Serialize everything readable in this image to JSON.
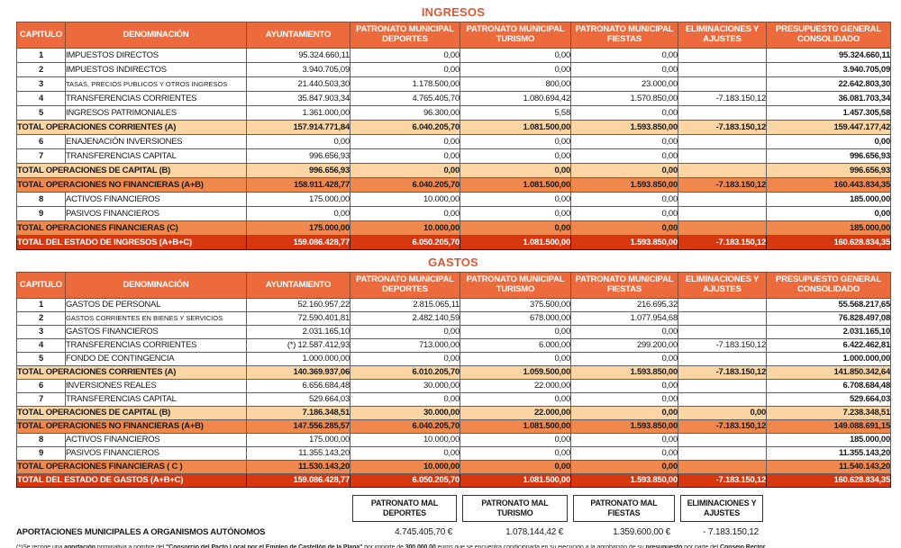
{
  "colors": {
    "header_bg": "#ED6A3C",
    "title_color": "#DE5730",
    "sub_bg": "#FBD5A4",
    "mid_bg": "#F0884E",
    "grand_bg": "#D8380F"
  },
  "columns": [
    "CAPITULO",
    "DENOMINACIÓN",
    "AYUNTAMIENTO",
    "PATRONATO MUNICIPAL\nDEPORTES",
    "PATRONATO MUNICIPAL\nTURISMO",
    "PATRONATO MUNICIPAL\nFIESTAS",
    "ELIMINACIONES Y\nAJUSTES",
    "PRESUPUESTO GENERAL\nCONSOLIDADO"
  ],
  "ingresos": {
    "title": "INGRESOS",
    "rows": [
      {
        "type": "data",
        "cap": "1",
        "den": "IMPUESTOS DIRECTOS",
        "vals": [
          "95.324.660,11",
          "0,00",
          "0,00",
          "0,00",
          "",
          "95.324.660,11"
        ]
      },
      {
        "type": "data",
        "cap": "2",
        "den": "IMPUESTOS INDIRECTOS",
        "vals": [
          "3.940.705,09",
          "0,00",
          "0,00",
          "0,00",
          "",
          "3.940.705,09"
        ]
      },
      {
        "type": "data",
        "cap": "3",
        "den": "TASAS, PRECIOS PUBLICOS Y OTROS INGRESOS",
        "small": true,
        "vals": [
          "21.440.503,30",
          "1.178.500,00",
          "800,00",
          "23.000,00",
          "",
          "22.642.803,30"
        ]
      },
      {
        "type": "data",
        "cap": "4",
        "den": "TRANSFERENCIAS CORRIENTES",
        "vals": [
          "35.847.903,34",
          "4.765.405,70",
          "1.080.694,42",
          "1.570.850,00",
          "-7.183.150,12",
          "36.081.703,34"
        ]
      },
      {
        "type": "data",
        "cap": "5",
        "den": "INGRESOS PATRIMONIALES",
        "vals": [
          "1.361.000,00",
          "96.300,00",
          "5,58",
          "0,00",
          "",
          "1.457.305,58"
        ]
      },
      {
        "type": "sub",
        "label": "TOTAL OPERACIONES CORRIENTES (A)",
        "vals": [
          "157.914.771,84",
          "6.040.205,70",
          "1.081.500,00",
          "1.593.850,00",
          "-7.183.150,12",
          "159.447.177,42"
        ]
      },
      {
        "type": "data",
        "cap": "6",
        "den": "ENAJENACIÓN INVERSIONES",
        "vals": [
          "0,00",
          "0,00",
          "0,00",
          "0,00",
          "",
          "0,00"
        ]
      },
      {
        "type": "data",
        "cap": "7",
        "den": "TRANSFERENCIAS CAPITAL",
        "vals": [
          "996.656,93",
          "0,00",
          "0,00",
          "0,00",
          "",
          "996.656,93"
        ]
      },
      {
        "type": "sub",
        "label": "TOTAL OPERACIONES DE CAPITAL (B)",
        "vals": [
          "996.656,93",
          "0,00",
          "0,00",
          "0,00",
          "",
          "996.656,93"
        ]
      },
      {
        "type": "mid",
        "label": "TOTAL OPERACIONES NO FINANCIERAS (A+B)",
        "vals": [
          "158.911.428,77",
          "6.040.205,70",
          "1.081.500,00",
          "1.593.850,00",
          "-7.183.150,12",
          "160.443.834,35"
        ]
      },
      {
        "type": "data",
        "cap": "8",
        "den": "ACTIVOS FINANCIEROS",
        "vals": [
          "175.000,00",
          "10.000,00",
          "0,00",
          "0,00",
          "",
          "185.000,00"
        ]
      },
      {
        "type": "data",
        "cap": "9",
        "den": "PASIVOS FINANCIEROS",
        "vals": [
          "0,00",
          "0,00",
          "0,00",
          "0,00",
          "",
          "0,00"
        ]
      },
      {
        "type": "mid",
        "label": "TOTAL OPERACIONES FINANCIERAS (C)",
        "vals": [
          "175.000,00",
          "10.000,00",
          "0,00",
          "0,00",
          "",
          "185.000,00"
        ]
      },
      {
        "type": "grand",
        "label": "TOTAL DEL ESTADO DE INGRESOS (A+B+C)",
        "vals": [
          "159.086.428,77",
          "6.050.205,70",
          "1.081.500,00",
          "1.593.850,00",
          "-7.183.150,12",
          "160.628.834,35"
        ]
      }
    ]
  },
  "gastos": {
    "title": "GASTOS",
    "rows": [
      {
        "type": "data",
        "cap": "1",
        "den": "GASTOS DE PERSONAL",
        "vals": [
          "52.160.957,22",
          "2.815.065,11",
          "375.500,00",
          "216.695,32",
          "",
          "55.568.217,65"
        ]
      },
      {
        "type": "data",
        "cap": "2",
        "den": "GASTOS CORRIENTES EN BIENES Y SERVICIOS",
        "small": true,
        "vals": [
          "72.590.401,81",
          "2.482.140,59",
          "678.000,00",
          "1.077.954,68",
          "",
          "76.828.497,08"
        ]
      },
      {
        "type": "data",
        "cap": "3",
        "den": "GASTOS FINANCIEROS",
        "vals": [
          "2.031.165,10",
          "0,00",
          "0,00",
          "0,00",
          "",
          "2.031.165,10"
        ]
      },
      {
        "type": "data",
        "cap": "4",
        "den": "TRANSFERENCIAS CORRIENTES",
        "boxed_elim": true,
        "vals": [
          "(*) 12.587.412,93",
          "713.000,00",
          "6.000,00",
          "299.200,00",
          "-7.183.150,12",
          "6.422.462,81"
        ]
      },
      {
        "type": "data",
        "cap": "5",
        "den": "FONDO DE CONTINGENCIA",
        "vals": [
          "1.000.000,00",
          "0,00",
          "0,00",
          "0,00",
          "",
          "1.000.000,00"
        ]
      },
      {
        "type": "sub",
        "label": "TOTAL OPERACIONES CORRIENTES (A)",
        "vals": [
          "140.369.937,06",
          "6.010.205,70",
          "1.059.500,00",
          "1.593.850,00",
          "-7.183.150,12",
          "141.850.342,64"
        ]
      },
      {
        "type": "data",
        "cap": "6",
        "den": "INVERSIONES REALES",
        "vals": [
          "6.656.684,48",
          "30.000,00",
          "22.000,00",
          "0,00",
          "",
          "6.708.684,48"
        ]
      },
      {
        "type": "data",
        "cap": "7",
        "den": "TRANSFERENCIAS CAPITAL",
        "vals": [
          "529.664,03",
          "0,00",
          "0,00",
          "0,00",
          "",
          "529.664,03"
        ]
      },
      {
        "type": "sub",
        "label": "TOTAL OPERACIONES DE CAPITAL (B)",
        "vals": [
          "7.186.348,51",
          "30.000,00",
          "22.000,00",
          "0,00",
          "0,00",
          "7.238.348,51"
        ]
      },
      {
        "type": "mid",
        "label": "TOTAL OPERACIONES NO FINANCIERAS (A+B)",
        "vals": [
          "147.556.285,57",
          "6.040.205,70",
          "1.081.500,00",
          "1.593.850,00",
          "-7.183.150,12",
          "149.088.691,15"
        ]
      },
      {
        "type": "data",
        "cap": "8",
        "den": "ACTIVOS FINANCIEROS",
        "vals": [
          "175.000,00",
          "10.000,00",
          "0,00",
          "0,00",
          "",
          "185.000,00"
        ]
      },
      {
        "type": "data",
        "cap": "9",
        "den": "PASIVOS FINANCIEROS",
        "vals": [
          "11.355.143,20",
          "0,00",
          "0,00",
          "0,00",
          "",
          "11.355.143,20"
        ]
      },
      {
        "type": "mid",
        "label": "TOTAL OPERACIONES FINANCIERAS ( C )",
        "vals": [
          "11.530.143,20",
          "10.000,00",
          "0,00",
          "0,00",
          "",
          "11.540.143,20"
        ]
      },
      {
        "type": "grand",
        "label": "TOTAL DEL ESTADO DE GASTOS (A+B+C)",
        "vals": [
          "159.086.428,77",
          "6.050.205,70",
          "1.081.500,00",
          "1.593.850,00",
          "-7.183.150,12",
          "160.628.834,35"
        ]
      }
    ]
  },
  "footer": {
    "boxes": [
      "PATRONATO MAL\nDEPORTES",
      "PATRONATO MAL\nTURISMO",
      "PATRONATO MAL\nFIESTAS",
      "ELIMINACIONES Y\nAJUSTES"
    ],
    "values": [
      "4.745.405,70 €",
      "1.078.144,42 €",
      "1.359.600,00 €",
      "- 7.183.150,12"
    ],
    "aportaciones_label": "APORTACIONES MUNICIPALES A ORGANISMOS AUTÓNOMOS",
    "footnote_segments": [
      {
        "t": "(*)Se recoge una ",
        "b": false
      },
      {
        "t": "aportación",
        "b": true
      },
      {
        "t": " nominativa a nombre del ",
        "b": false
      },
      {
        "t": "\"Consorcio del Pacto Local por el Empleo de Castellón de la Plana\"",
        "b": true
      },
      {
        "t": " por importe de ",
        "b": false
      },
      {
        "t": "300.000,00",
        "b": true
      },
      {
        "t": " euros que se encuentra condicionada en su ejecución a la aprobación de su ",
        "b": false
      },
      {
        "t": "presupuesto",
        "b": true
      },
      {
        "t": " por parte del ",
        "b": false
      },
      {
        "t": "Consejo Rector",
        "b": true
      },
      {
        "t": ".",
        "b": false
      }
    ]
  }
}
